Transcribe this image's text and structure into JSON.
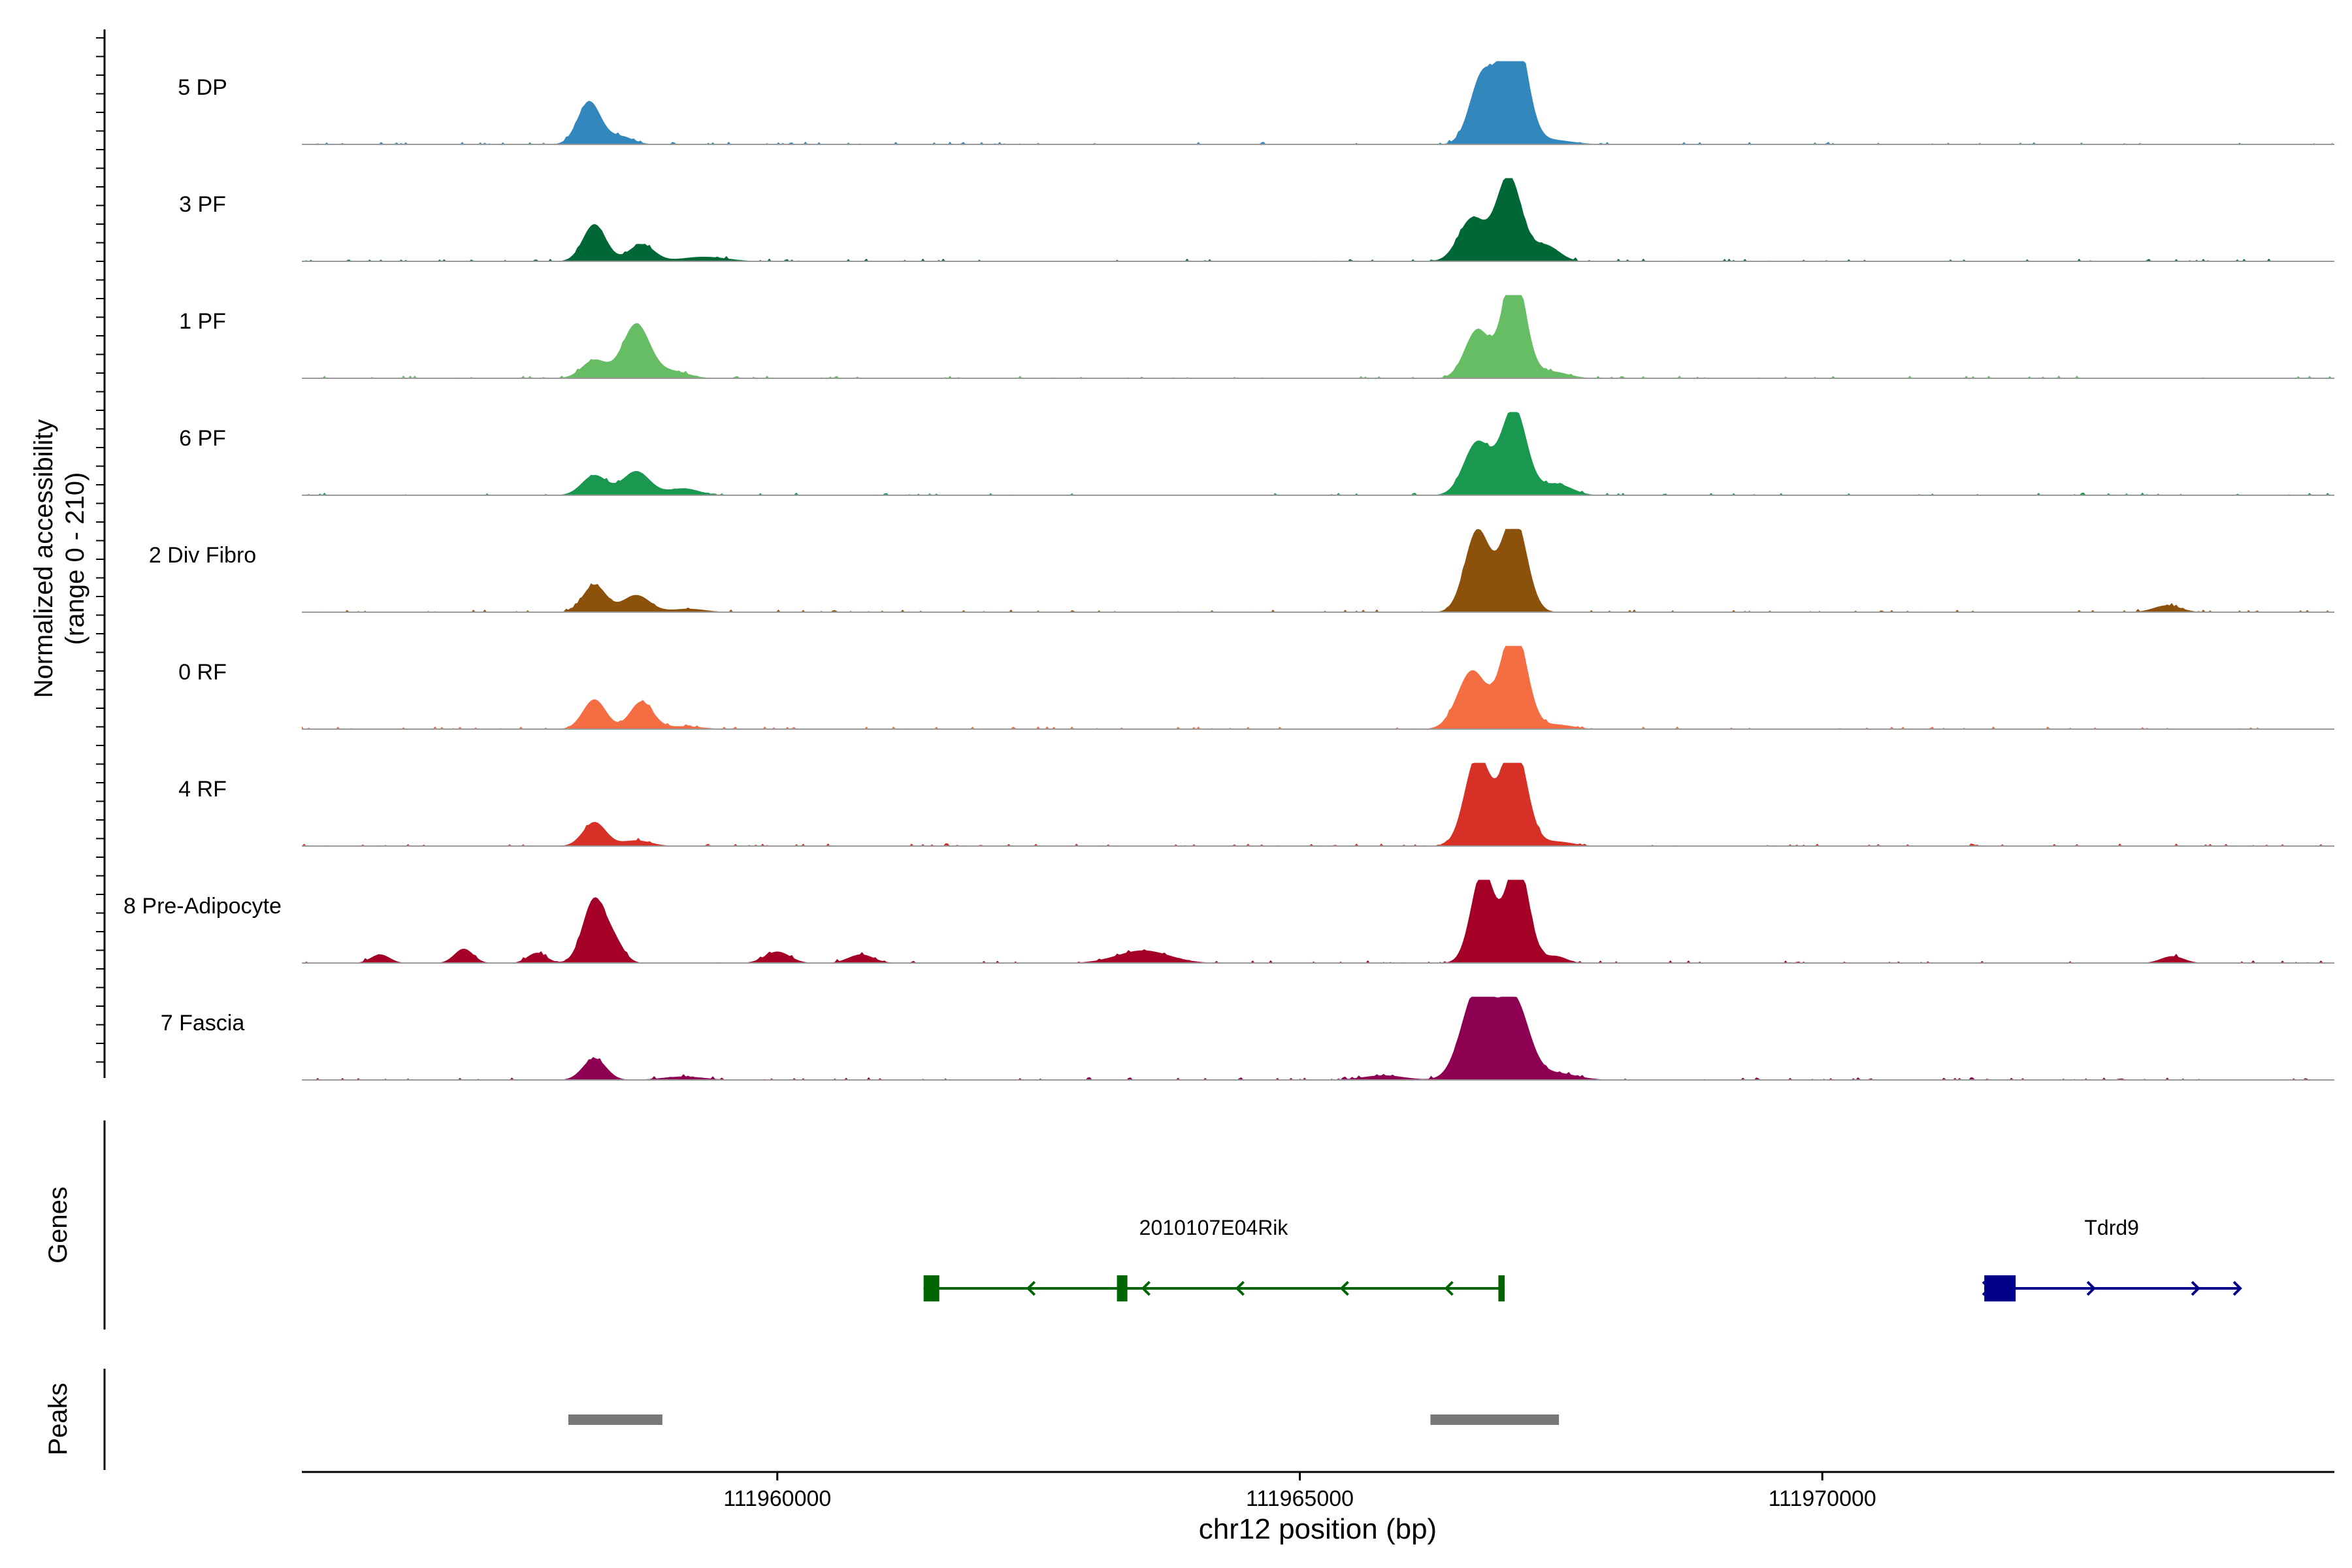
{
  "chart_data": {
    "type": "area",
    "title": "",
    "xlabel": "chr12 position (bp)",
    "ylabel_line1": "Normalized accessibility",
    "ylabel_line2": "(range 0 - 210)",
    "y_range": [
      0,
      210
    ],
    "xlim": [
      111955450,
      111974900
    ],
    "x_ticks": [
      111960000,
      111965000,
      111970000
    ],
    "x_tick_labels": [
      "111960000",
      "111965000",
      "111970000"
    ],
    "track_labels": {
      "genes": "Genes",
      "peaks": "Peaks"
    },
    "series": [
      {
        "name": "5 DP",
        "color": "#3288bd",
        "peaks": [
          [
            111958200,
            0.75,
            110
          ],
          [
            111958500,
            0.14,
            120
          ],
          [
            111966750,
            1.22,
            120
          ],
          [
            111967050,
            2.14,
            120
          ],
          [
            111967400,
            0.08,
            200
          ]
        ]
      },
      {
        "name": "3 PF",
        "color": "#006837",
        "peaks": [
          [
            111958250,
            0.65,
            110
          ],
          [
            111958700,
            0.3,
            120
          ],
          [
            111959300,
            0.08,
            220
          ],
          [
            111966650,
            0.75,
            130
          ],
          [
            111967000,
            1.49,
            120
          ],
          [
            111967350,
            0.28,
            130
          ]
        ]
      },
      {
        "name": "1 PF",
        "color": "#66bd63",
        "peaks": [
          [
            111958250,
            0.32,
            120
          ],
          [
            111958650,
            0.95,
            130
          ],
          [
            111959000,
            0.12,
            150
          ],
          [
            111966700,
            0.85,
            120
          ],
          [
            111967050,
            1.9,
            110
          ],
          [
            111967400,
            0.12,
            160
          ]
        ]
      },
      {
        "name": "6 PF",
        "color": "#1a9850",
        "peaks": [
          [
            111958250,
            0.35,
            120
          ],
          [
            111958650,
            0.42,
            130
          ],
          [
            111959100,
            0.12,
            150
          ],
          [
            111966700,
            0.93,
            130
          ],
          [
            111967050,
            1.53,
            120
          ],
          [
            111967450,
            0.2,
            150
          ]
        ]
      },
      {
        "name": "2 Div Fibro",
        "color": "#8c510a",
        "peaks": [
          [
            111958250,
            0.48,
            110
          ],
          [
            111958650,
            0.3,
            130
          ],
          [
            111959150,
            0.06,
            160
          ],
          [
            111966700,
            1.43,
            120
          ],
          [
            111967050,
            1.69,
            120
          ],
          [
            111973300,
            0.12,
            130
          ]
        ]
      },
      {
        "name": "0 RF",
        "color": "#f46d43",
        "peaks": [
          [
            111958250,
            0.52,
            110
          ],
          [
            111958700,
            0.48,
            110
          ],
          [
            111959100,
            0.05,
            180
          ],
          [
            111966650,
            1.02,
            140
          ],
          [
            111967050,
            1.82,
            120
          ],
          [
            111967450,
            0.08,
            160
          ]
        ]
      },
      {
        "name": "4 RF",
        "color": "#d73027",
        "peaks": [
          [
            111958250,
            0.42,
            110
          ],
          [
            111958650,
            0.1,
            140
          ],
          [
            111966700,
            1.59,
            120
          ],
          [
            111967050,
            1.84,
            120
          ],
          [
            111967450,
            0.08,
            160
          ]
        ]
      },
      {
        "name": "8 Pre-Adipocyte",
        "color": "#a50026",
        "peaks": [
          [
            111956200,
            0.15,
            90
          ],
          [
            111957000,
            0.25,
            90
          ],
          [
            111957700,
            0.18,
            90
          ],
          [
            111958250,
            1.12,
            110
          ],
          [
            111958450,
            0.3,
            90
          ],
          [
            111960000,
            0.2,
            120
          ],
          [
            111960800,
            0.15,
            120
          ],
          [
            111963500,
            0.22,
            250
          ],
          [
            111966750,
            1.62,
            110
          ],
          [
            111967080,
            1.82,
            110
          ],
          [
            111967450,
            0.12,
            100
          ],
          [
            111973350,
            0.12,
            110
          ]
        ]
      },
      {
        "name": "7 Fascia",
        "color": "#8e0152",
        "peaks": [
          [
            111958250,
            0.38,
            110
          ],
          [
            111966700,
            1.6,
            150
          ],
          [
            111967050,
            1.38,
            140
          ],
          [
            111967450,
            0.12,
            200
          ],
          [
            111965800,
            0.08,
            200
          ],
          [
            111959100,
            0.06,
            200
          ]
        ]
      }
    ],
    "genes": [
      {
        "name": "2010107E04Rik",
        "strand": "-",
        "color": "#006400",
        "start": 111961400,
        "end": 111966950,
        "exons": [
          [
            111961400,
            111961550
          ],
          [
            111963250,
            111963350
          ],
          [
            111966900,
            111966960
          ]
        ],
        "arrows": [
          111962400,
          111963500,
          111964400,
          111965400,
          111966400
        ]
      },
      {
        "name": "Tdrd9",
        "strand": "+",
        "color": "#00008b",
        "start": 111971550,
        "end": 111974000,
        "exons": [
          [
            111971550,
            111971850
          ]
        ],
        "arrows": [
          111971600,
          111972600,
          111973600,
          111974000
        ]
      }
    ],
    "peak_regions": [
      [
        111958000,
        111958900
      ],
      [
        111966250,
        111967480
      ]
    ],
    "colors": {
      "axis": "#000000",
      "baseline": "#999999",
      "peak_region": "#777777"
    }
  }
}
